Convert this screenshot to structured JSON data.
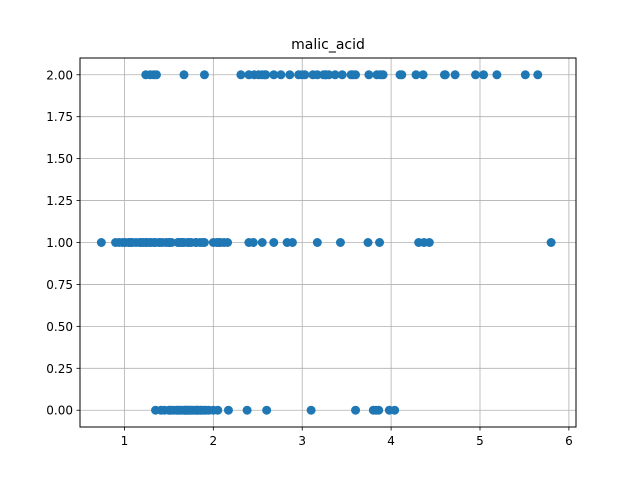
{
  "chart_data": {
    "type": "scatter",
    "title": "malic_acid",
    "xlabel": "",
    "ylabel": "",
    "xlim": [
      0.5,
      6.08
    ],
    "ylim": [
      -0.1,
      2.1
    ],
    "x_ticks": [
      1,
      2,
      3,
      4,
      5,
      6
    ],
    "x_tick_labels": [
      "1",
      "2",
      "3",
      "4",
      "5",
      "6"
    ],
    "y_ticks": [
      0.0,
      0.25,
      0.5,
      0.75,
      1.0,
      1.25,
      1.5,
      1.75,
      2.0
    ],
    "y_tick_labels": [
      "0.00",
      "0.25",
      "0.50",
      "0.75",
      "1.00",
      "1.25",
      "1.50",
      "1.75",
      "2.00"
    ],
    "grid": true,
    "marker_color": "#1f77b4",
    "series": [
      {
        "x": [
          1.35,
          1.41,
          1.45,
          1.5,
          1.51,
          1.53,
          1.56,
          1.59,
          1.6,
          1.61,
          1.63,
          1.65,
          1.67,
          1.68,
          1.69,
          1.7,
          1.71,
          1.72,
          1.73,
          1.75,
          1.76,
          1.78,
          1.8,
          1.81,
          1.82,
          1.83,
          1.85,
          1.86,
          1.88,
          1.9,
          1.92,
          1.95,
          2.0,
          2.05,
          2.17,
          2.38,
          2.6,
          3.1,
          3.6,
          3.8,
          3.83,
          3.86,
          3.98,
          4.04,
          0.74,
          0.9,
          0.94,
          0.98,
          1.01,
          1.05,
          1.07,
          1.09,
          1.13,
          1.17,
          1.19,
          1.21,
          1.24,
          1.25,
          1.28,
          1.3,
          1.33,
          1.35,
          1.39,
          1.4,
          1.43,
          1.47,
          1.5,
          1.51,
          1.53,
          1.6,
          1.61,
          1.63,
          1.65,
          1.67,
          1.71,
          1.73,
          1.75,
          1.8,
          1.81,
          1.85,
          1.88,
          1.9,
          2.0,
          2.04,
          2.06,
          2.08,
          2.12,
          2.16,
          2.4,
          2.45,
          2.55,
          2.68,
          2.83,
          2.89,
          3.17,
          3.43,
          3.74,
          3.87,
          4.31,
          4.37,
          4.43,
          5.8,
          1.24,
          1.29,
          1.33,
          1.36,
          1.67,
          1.9,
          2.31,
          2.4,
          2.46,
          2.51,
          2.55,
          2.58,
          2.59,
          2.68,
          2.76,
          2.86,
          2.96,
          3.0,
          3.03,
          3.12,
          3.17,
          3.24,
          3.26,
          3.27,
          3.3,
          3.37,
          3.45,
          3.55,
          3.57,
          3.6,
          3.75,
          3.84,
          3.88,
          3.91,
          4.1,
          4.12,
          4.28,
          4.36,
          4.6,
          4.61,
          4.72,
          4.95,
          5.04,
          5.19,
          5.51,
          5.65
        ],
        "y": [
          0,
          0,
          0,
          0,
          0,
          0,
          0,
          0,
          0,
          0,
          0,
          0,
          0,
          0,
          0,
          0,
          0,
          0,
          0,
          0,
          0,
          0,
          0,
          0,
          0,
          0,
          0,
          0,
          0,
          0,
          0,
          0,
          0,
          0,
          0,
          0,
          0,
          0,
          0,
          0,
          0,
          0,
          0,
          0,
          1,
          1,
          1,
          1,
          1,
          1,
          1,
          1,
          1,
          1,
          1,
          1,
          1,
          1,
          1,
          1,
          1,
          1,
          1,
          1,
          1,
          1,
          1,
          1,
          1,
          1,
          1,
          1,
          1,
          1,
          1,
          1,
          1,
          1,
          1,
          1,
          1,
          1,
          1,
          1,
          1,
          1,
          1,
          1,
          1,
          1,
          1,
          1,
          1,
          1,
          1,
          1,
          1,
          1,
          1,
          1,
          1,
          1,
          2,
          2,
          2,
          2,
          2,
          2,
          2,
          2,
          2,
          2,
          2,
          2,
          2,
          2,
          2,
          2,
          2,
          2,
          2,
          2,
          2,
          2,
          2,
          2,
          2,
          2,
          2,
          2,
          2,
          2,
          2,
          2,
          2,
          2,
          2,
          2,
          2,
          2,
          2,
          2,
          2,
          2,
          2,
          2,
          2,
          2
        ]
      }
    ]
  }
}
